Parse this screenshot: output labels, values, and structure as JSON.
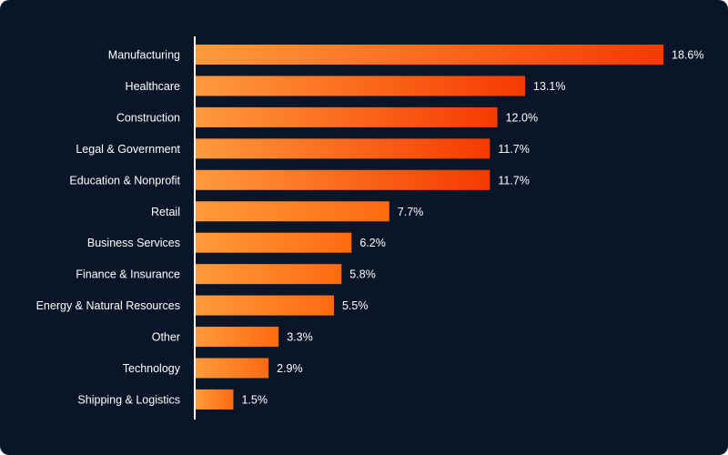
{
  "chart_data": {
    "type": "bar",
    "orientation": "horizontal",
    "title": "",
    "xlabel": "",
    "ylabel": "",
    "grid": false,
    "legend": "none",
    "value_suffix": "%",
    "categories": [
      "Manufacturing",
      "Healthcare",
      "Construction",
      "Legal & Government",
      "Education & Nonprofit",
      "Retail",
      "Business Services",
      "Finance & Insurance",
      "Energy & Natural Resources",
      "Other",
      "Technology",
      "Shipping & Logistics"
    ],
    "values": [
      18.6,
      13.1,
      12.0,
      11.7,
      11.7,
      7.7,
      6.2,
      5.8,
      5.5,
      3.3,
      2.9,
      1.5
    ],
    "value_labels": [
      "18.6%",
      "13.1%",
      "12.0%",
      "11.7%",
      "11.7%",
      "7.7%",
      "6.2%",
      "5.8%",
      "5.5%",
      "3.3%",
      "2.9%",
      "1.5%"
    ],
    "xlim": [
      0,
      18.6
    ],
    "colors": {
      "background": "#0a1628",
      "gradient_start": "#ff9a3c",
      "gradient_mid": "#ff6a10",
      "gradient_end": "#f53a00",
      "axis": "#ffffff",
      "text": "#ffffff"
    }
  }
}
